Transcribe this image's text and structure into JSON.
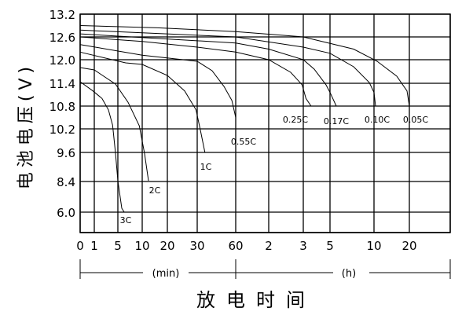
{
  "chart_data": {
    "type": "line",
    "title": "",
    "xlabel": "放电时间",
    "ylabel": "电池电压(V)",
    "x_unit_min": "(min)",
    "x_unit_h": "(h)",
    "x_scale": "non-uniform (min then h)",
    "y_scale": "non-uniform",
    "grid": true,
    "x_ticks": [
      {
        "label": "0",
        "minutes": 0
      },
      {
        "label": "1",
        "minutes": 1
      },
      {
        "label": "5",
        "minutes": 5
      },
      {
        "label": "10",
        "minutes": 10
      },
      {
        "label": "20",
        "minutes": 20
      },
      {
        "label": "30",
        "minutes": 30
      },
      {
        "label": "60",
        "minutes": 60
      },
      {
        "label": "2",
        "minutes": 120
      },
      {
        "label": "3",
        "minutes": 180
      },
      {
        "label": "5",
        "minutes": 300
      },
      {
        "label": "10",
        "minutes": 600
      },
      {
        "label": "20",
        "minutes": 1200
      }
    ],
    "y_ticks": [
      "13.2",
      "12.6",
      "12.0",
      "11.4",
      "10.8",
      "10.2",
      "9.6",
      "8.4",
      "6.0"
    ],
    "series": [
      {
        "name": "3C",
        "x_minutes": [
          0,
          0.9,
          2.3,
          3.4,
          4.1,
          4.6,
          5,
          5.8,
          6.3
        ],
        "y": [
          11.44,
          11.2,
          11.0,
          10.7,
          10.3,
          9.57,
          8.43,
          6.3,
          6.0
        ]
      },
      {
        "name": "2C",
        "x_minutes": [
          0,
          1,
          4.6,
          7.1,
          9.4,
          10.9,
          12.5
        ],
        "y": [
          11.8,
          11.74,
          11.38,
          10.9,
          10.28,
          9.57,
          8.43
        ]
      },
      {
        "name": "1C",
        "x_minutes": [
          0,
          6.6,
          10,
          20,
          25.8,
          29.6,
          32.4,
          36
        ],
        "y": [
          12.2,
          11.92,
          11.88,
          11.6,
          11.2,
          10.7,
          10.18,
          9.6
        ]
      },
      {
        "name": "0.55C",
        "x_minutes": [
          0,
          10,
          30,
          41.6,
          50.8,
          57,
          60
        ],
        "y": [
          12.4,
          12.12,
          11.96,
          11.72,
          11.32,
          10.95,
          10.5
        ]
      },
      {
        "name": "0.25C",
        "x_minutes": [
          0,
          10,
          30,
          60,
          120,
          158,
          178,
          192,
          215
        ],
        "y": [
          12.6,
          12.48,
          12.33,
          12.2,
          12.0,
          11.68,
          11.36,
          11.0,
          10.8
        ]
      },
      {
        "name": "0.17C",
        "x_minutes": [
          0,
          60,
          120,
          180,
          229,
          282,
          300,
          343
        ],
        "y": [
          12.68,
          12.44,
          12.28,
          12.0,
          11.76,
          11.36,
          11.16,
          10.8
        ]
      },
      {
        "name": "0.10C",
        "x_minutes": [
          0,
          60,
          180,
          300,
          461,
          568,
          600,
          627
        ],
        "y": [
          12.78,
          12.6,
          12.33,
          12.17,
          11.82,
          11.42,
          11.16,
          10.8
        ]
      },
      {
        "name": "0.05C",
        "x_minutes": [
          0,
          16,
          60,
          180,
          461,
          653,
          987,
          1160,
          1200
        ],
        "y": [
          12.9,
          12.84,
          12.74,
          12.6,
          12.28,
          11.96,
          11.58,
          11.2,
          10.8
        ]
      }
    ],
    "line_color": "#000000",
    "background": "#ffffff"
  }
}
